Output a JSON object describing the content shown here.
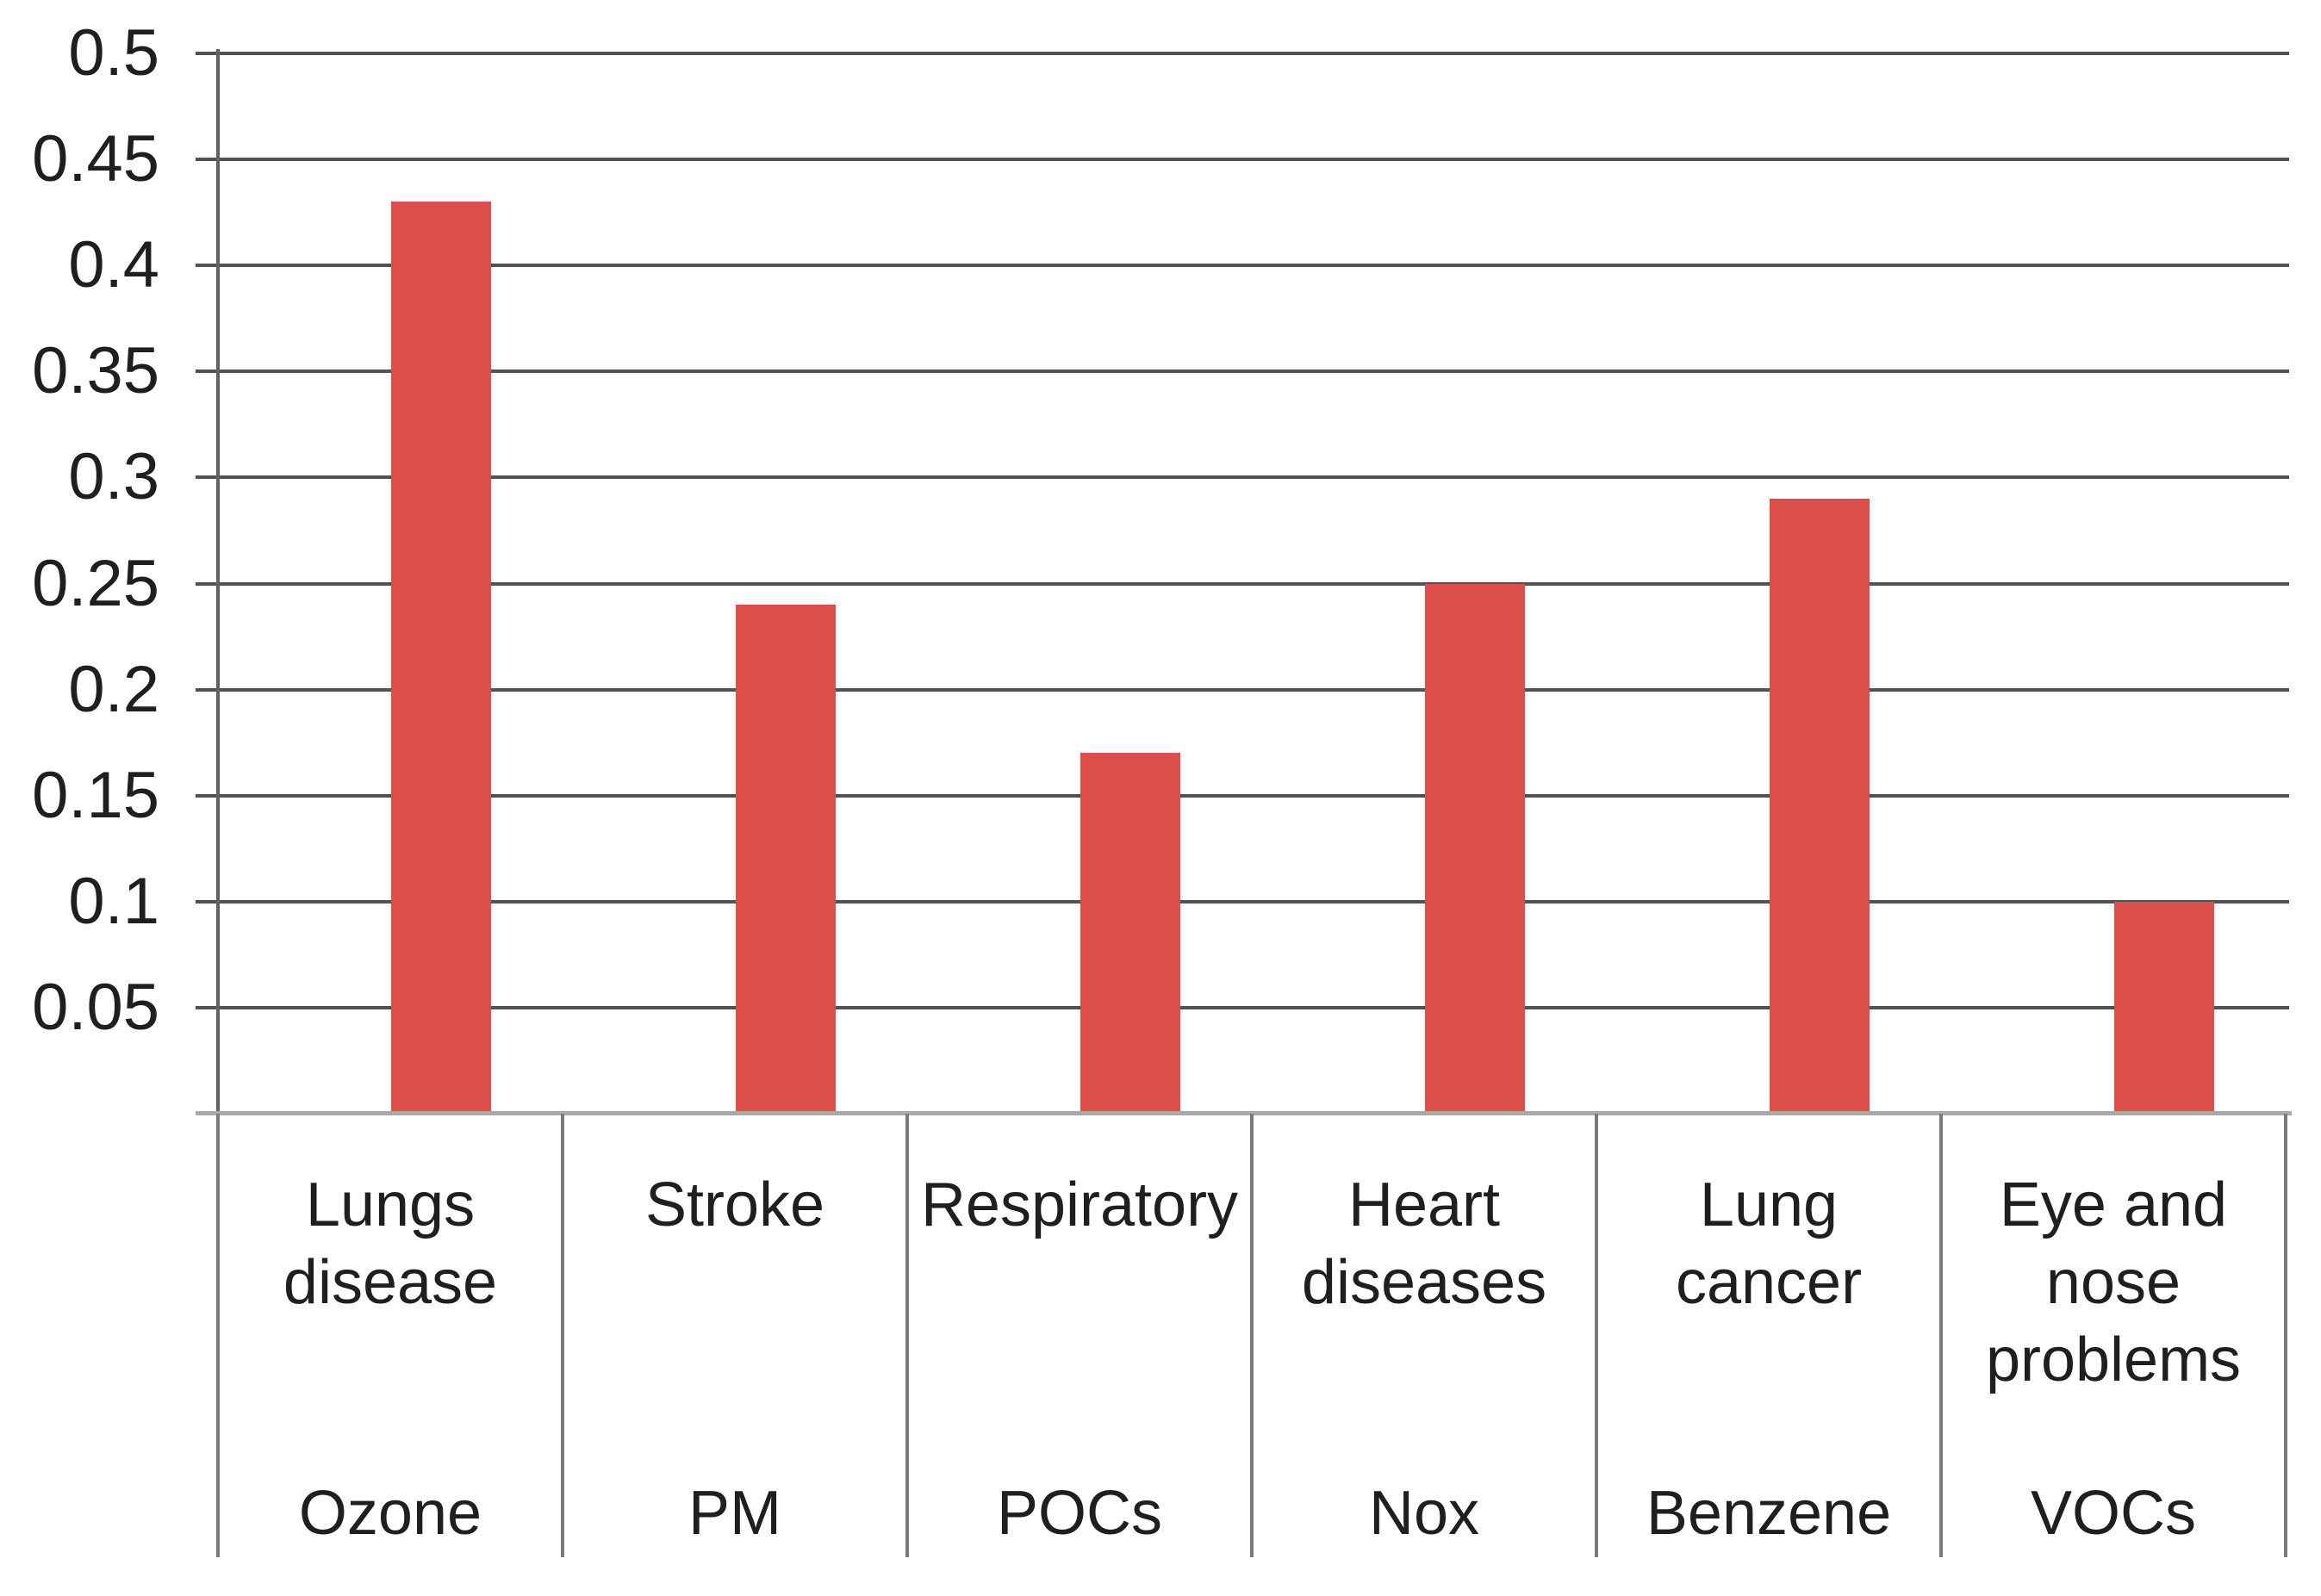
{
  "chart_data": {
    "type": "bar",
    "title": "",
    "xlabel": "",
    "ylabel": "",
    "categories": [
      {
        "effect": "Lungs disease",
        "pollutant": "Ozone"
      },
      {
        "effect": "Stroke",
        "pollutant": "PM"
      },
      {
        "effect": "Respiratory",
        "pollutant": "POCs"
      },
      {
        "effect": "Heart diseases",
        "pollutant": "Nox"
      },
      {
        "effect": "Lung cancer",
        "pollutant": "Benzene"
      },
      {
        "effect": "Eye and nose problems",
        "pollutant": "VOCs"
      }
    ],
    "values": [
      0.43,
      0.24,
      0.17,
      0.25,
      0.29,
      0.1
    ],
    "ylim": [
      0,
      0.5
    ],
    "ytick_values": [
      0.5,
      0.45,
      0.4,
      0.35,
      0.3,
      0.25,
      0.2,
      0.15,
      0.1,
      0.05
    ],
    "ytick_labels": [
      "0.5",
      "0.45",
      "0.4",
      "0.35",
      "0.3",
      "0.25",
      "0.2",
      "0.15",
      "0.1",
      "0.05"
    ],
    "grid": "horizontal",
    "legend": "none",
    "colors": {
      "bar": "#DC4E4A",
      "gridline": "#525252",
      "category_axis_line": "#A9A9A9",
      "y_axis_line": "#616161",
      "divider": "#7A7A7A",
      "text": "#1F1F1F",
      "background": "#FFFFFF"
    }
  }
}
